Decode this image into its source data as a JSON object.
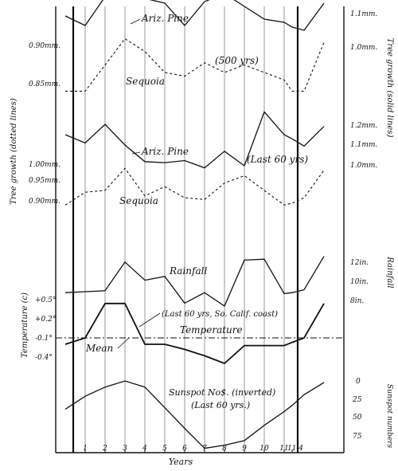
{
  "chart_data": {
    "type": "line",
    "x_ticks": [
      "1",
      "2",
      "3",
      "4",
      "5",
      "6",
      "7",
      "8",
      "9",
      "10",
      "11",
      "11.4"
    ],
    "xlabel": "Years",
    "axis_titles": {
      "left_top": "Tree growth (dotted lines)",
      "right_top": "Tree growth (solid lines)",
      "right_rain": "Rainfall",
      "left_temp": "Temperature (c)",
      "right_sun": "Sunspot numbers"
    },
    "left_ticks_500": [
      "0.90mm.",
      "0.85mm."
    ],
    "right_ticks_500": [
      "1.1mm.",
      "1.0mm."
    ],
    "left_ticks_60": [
      "1.00mm.",
      "0.95mm.",
      "0.90mm."
    ],
    "right_ticks_60": [
      "1.2mm.",
      "1.1mm.",
      "1.0mm."
    ],
    "rain_ticks": [
      "12in.",
      "10in.",
      "8in."
    ],
    "temp_ticks": [
      "+0.5°",
      "+0.2°",
      "-0.1°",
      "-0.4°"
    ],
    "sun_ticks": [
      "0",
      "25",
      "50",
      "75"
    ],
    "labels": {
      "pine500": "Ariz. Pine",
      "seq500": "Sequoia",
      "yrs500": "(500 yrs)",
      "pine60": "Ariz. Pine",
      "last60": "(Last 60 yrs)",
      "seq60": "Sequoia",
      "rainfall": "Rainfall",
      "last60coast": "(Last 60 yrs, So. Calif. coast)",
      "temperature": "Temperature",
      "mean": "Mean",
      "sunspot": "Sunspot No$. (inverted)",
      "sunspot_last60": "(Last 60 yrs.)"
    },
    "series": [
      {
        "key": "pine500",
        "name": "Ariz. Pine",
        "style": "solid",
        "unit": "mm",
        "x": [
          0,
          1,
          2,
          3,
          4,
          5,
          6,
          7,
          8,
          9,
          10,
          11,
          11.4,
          12,
          13
        ],
        "values": [
          1.1,
          1.07,
          1.16,
          1.18,
          1.155,
          1.14,
          1.07,
          1.145,
          1.17,
          1.13,
          1.09,
          1.08,
          1.065,
          1.055,
          1.14
        ]
      },
      {
        "key": "seq500",
        "name": "Sequoia",
        "style": "dotted",
        "unit": "mm",
        "x": [
          0,
          1,
          2,
          3,
          4,
          5,
          6,
          7,
          8,
          9,
          10,
          11,
          11.4,
          12,
          13
        ],
        "values": [
          0.84,
          0.84,
          0.875,
          0.91,
          0.893,
          0.865,
          0.86,
          0.878,
          0.865,
          0.875,
          0.865,
          0.855,
          0.84,
          0.84,
          0.905
        ]
      },
      {
        "key": "pine60",
        "name": "Ariz. Pine",
        "style": "solid",
        "unit": "mm",
        "x": [
          0,
          1,
          2,
          3,
          4,
          5,
          6,
          7,
          8,
          9,
          10,
          11,
          11.4,
          12,
          13
        ],
        "values": [
          1.15,
          1.11,
          1.2,
          1.1,
          1.02,
          1.015,
          1.025,
          0.99,
          1.07,
          1.0,
          1.26,
          1.15,
          1.13,
          1.095,
          1.19
        ]
      },
      {
        "key": "seq60",
        "name": "Sequoia",
        "style": "dotted",
        "unit": "mm",
        "x": [
          0,
          1,
          2,
          3,
          4,
          5,
          6,
          7,
          8,
          9,
          10,
          11,
          11.4,
          12,
          13
        ],
        "values": [
          0.895,
          0.93,
          0.935,
          0.995,
          0.92,
          0.945,
          0.915,
          0.91,
          0.955,
          0.975,
          0.935,
          0.895,
          0.9,
          0.915,
          0.99
        ]
      },
      {
        "key": "rain",
        "name": "Rainfall",
        "style": "solid",
        "unit": "in",
        "x": [
          0,
          1,
          2,
          3,
          4,
          5,
          6,
          7,
          8,
          9,
          10,
          11,
          11.4,
          12,
          13
        ],
        "values": [
          8.9,
          9.0,
          9.1,
          12.1,
          10.2,
          10.6,
          7.8,
          8.9,
          7.5,
          12.3,
          12.4,
          8.8,
          8.9,
          9.2,
          12.7
        ]
      },
      {
        "key": "temp",
        "name": "Temperature",
        "style": "solid",
        "unit": "°C",
        "x": [
          0,
          1,
          2,
          3,
          4,
          5,
          6,
          7,
          8,
          9,
          10,
          11,
          11.4,
          12,
          13
        ],
        "values": [
          -0.2,
          -0.1,
          0.44,
          0.44,
          -0.2,
          -0.2,
          -0.28,
          -0.38,
          -0.5,
          -0.22,
          -0.22,
          -0.22,
          -0.17,
          -0.1,
          0.44
        ]
      },
      {
        "key": "sun",
        "name": "Sunspot No. (inverted)",
        "style": "solid",
        "unit": "count",
        "x": [
          0,
          1,
          2,
          3,
          4,
          5,
          6,
          7,
          8,
          9,
          10,
          11,
          11.4,
          12,
          13
        ],
        "values": [
          37,
          20,
          8,
          0,
          8,
          35,
          62,
          88,
          84,
          78,
          58,
          40,
          32,
          18,
          2
        ]
      }
    ],
    "mean_temperature": -0.1
  }
}
